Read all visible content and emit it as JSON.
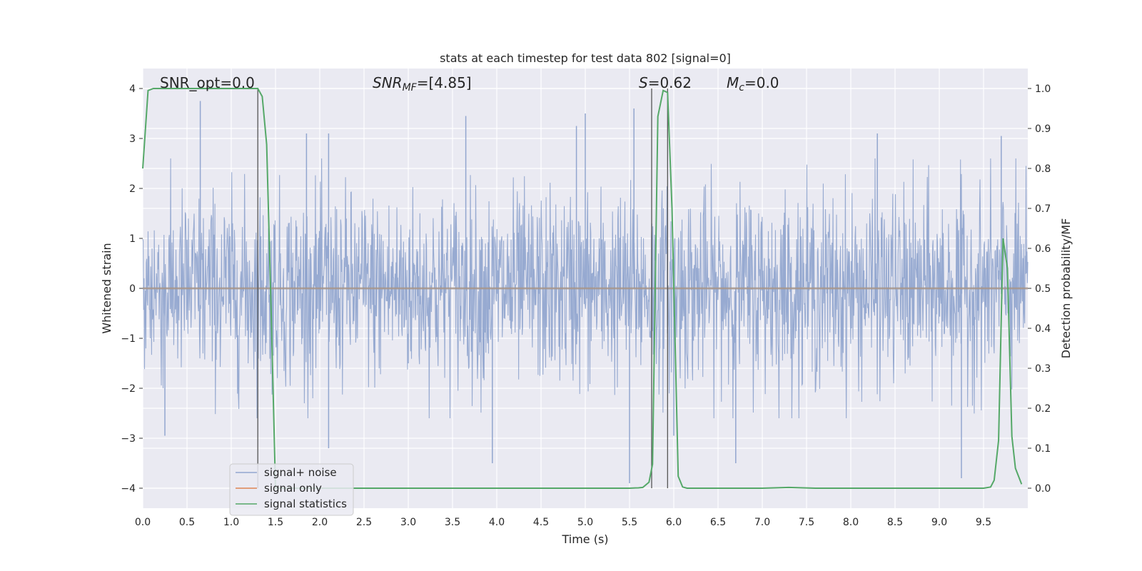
{
  "chart_data": {
    "type": "line",
    "title": "stats at each timestep for test data 802 [signal=0]",
    "xlabel": "Time (s)",
    "ylabel_left": "Whitened strain",
    "ylabel_right": "Detection probability/MF",
    "xlim": [
      0.0,
      10.0
    ],
    "ylim_left": [
      -4.4,
      4.4
    ],
    "ylim_right": [
      -0.05,
      1.05
    ],
    "xticks": [
      "0.0",
      "0.5",
      "1.0",
      "1.5",
      "2.0",
      "2.5",
      "3.0",
      "3.5",
      "4.0",
      "4.5",
      "5.0",
      "5.5",
      "6.0",
      "6.5",
      "7.0",
      "7.5",
      "8.0",
      "8.5",
      "9.0",
      "9.5"
    ],
    "yticks_left": [
      "4",
      "3",
      "2",
      "1",
      "0",
      "−1",
      "−2",
      "−3",
      "−4"
    ],
    "yticks_right": [
      "1.0",
      "0.9",
      "0.8",
      "0.7",
      "0.6",
      "0.5",
      "0.4",
      "0.3",
      "0.2",
      "0.1",
      "0.0"
    ],
    "grid": true,
    "legend_position": "lower-left",
    "annotations": {
      "snr_opt": "SNR_opt=0.0",
      "snr_mf_var": "SNR",
      "snr_mf_sub": "MF",
      "snr_mf_val": "=[4.85]",
      "s_var": "S",
      "s_val": "=0.62",
      "mc_var": "M",
      "mc_sub": "c",
      "mc_val": "=0.0"
    },
    "vlines_x": [
      1.3,
      5.75,
      5.93
    ],
    "series": [
      {
        "name": "signal+ noise",
        "color": "#92a6cf",
        "axis": "left",
        "noise_envelope": {
          "typical_range": [
            -2.4,
            2.4
          ],
          "spikes": [
            [
              0.65,
              3.75
            ],
            [
              1.85,
              3.1
            ],
            [
              2.1,
              3.1
            ],
            [
              3.65,
              3.45
            ],
            [
              4.9,
              3.25
            ],
            [
              5.0,
              3.5
            ],
            [
              5.55,
              3.6
            ],
            [
              5.5,
              -3.9
            ],
            [
              6.7,
              -3.5
            ],
            [
              8.3,
              3.1
            ],
            [
              9.25,
              -3.8
            ],
            [
              9.7,
              3.05
            ],
            [
              0.25,
              -2.95
            ],
            [
              3.95,
              -3.5
            ],
            [
              6.0,
              -2.95
            ],
            [
              2.1,
              -3.2
            ]
          ]
        }
      },
      {
        "name": "signal only",
        "color": "#dd8452",
        "axis": "left",
        "values_y": 0
      },
      {
        "name": "signal statistics",
        "color": "#55a868",
        "axis": "right",
        "x": [
          0.0,
          0.06,
          0.12,
          0.2,
          0.5,
          1.0,
          1.3,
          1.35,
          1.4,
          1.45,
          1.5,
          2.0,
          3.0,
          4.0,
          5.0,
          5.5,
          5.6,
          5.65,
          5.72,
          5.76,
          5.79,
          5.82,
          5.88,
          5.93,
          5.98,
          6.05,
          6.1,
          6.15,
          6.5,
          7.0,
          7.3,
          7.6,
          8.0,
          9.0,
          9.5,
          9.58,
          9.62,
          9.67,
          9.72,
          9.77,
          9.82,
          9.86,
          9.93
        ],
        "y": [
          0.8,
          0.995,
          1.0,
          1.0,
          1.0,
          1.0,
          1.0,
          0.98,
          0.86,
          0.45,
          0.0,
          0.0,
          0.0,
          0.0,
          0.0,
          0.0,
          0.001,
          0.002,
          0.015,
          0.06,
          0.5,
          0.93,
          0.995,
          0.99,
          0.7,
          0.03,
          0.003,
          0.0,
          0.0,
          0.0,
          0.002,
          0.0,
          0.0,
          0.0,
          0.0,
          0.003,
          0.02,
          0.12,
          0.625,
          0.55,
          0.13,
          0.05,
          0.01
        ]
      }
    ]
  }
}
